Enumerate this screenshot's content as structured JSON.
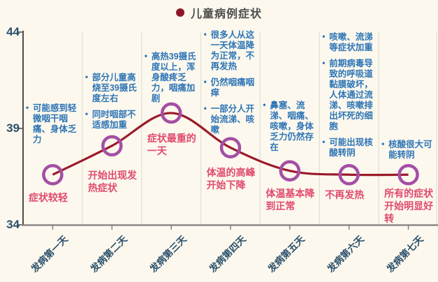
{
  "title": {
    "text": "儿童病例症状"
  },
  "colors": {
    "background": "#fcf8ee",
    "title_text": "#4d4d4d",
    "legend_dot": "#8e1626",
    "line": "#9a1b2b",
    "marker": "#a44fa4",
    "notes_text": "#2e75b5",
    "summary_text": "#e04a6e",
    "axis_label": "#2b506b",
    "y_axis_line": "#4d4d4d",
    "x_axis_line": "#7f7f7f",
    "gridline": "#dfe2d4"
  },
  "y_axis": {
    "tick_labels": [
      "44",
      "39",
      "34"
    ],
    "min": 34,
    "max": 44
  },
  "days": [
    {
      "x_label": "发病第一天",
      "value": 36.6,
      "notes": [
        "可能感到轻微咽干咽痛、身体乏力"
      ],
      "summary": "症状较轻"
    },
    {
      "x_label": "发病第二天",
      "value": 38.1,
      "notes": [
        "部分儿童高烧至39摄氏度左右",
        "同时咽部不适感加重"
      ],
      "summary": "开始出现发热症状"
    },
    {
      "x_label": "发病第三天",
      "value": 39.8,
      "notes": [
        "高热39摄氏度以上，浑身酸疼乏力，咽痛加剧"
      ],
      "summary": "症状最重的一天"
    },
    {
      "x_label": "发病第四天",
      "value": 38.0,
      "notes": [
        "很多人从这一天体温降为正常，不再发热",
        "仍然咽痛咽痒",
        "一部分人开始流涕、咳嗽"
      ],
      "summary": "体温的高峰开始下降"
    },
    {
      "x_label": "发病第五天",
      "value": 36.8,
      "notes": [
        "鼻塞、流涕、咽痛、咳嗽，身体乏力仍然存在"
      ],
      "summary": "体温基本降到正常"
    },
    {
      "x_label": "发病第六天",
      "value": 36.6,
      "notes": [
        "咳嗽、流涕等症状加重",
        "前期病毒导致的呼吸道黏膜破坏，人体通过流涕、咳嗽排出坏死的细胞",
        "可能出现核酸转阴"
      ],
      "summary": "不再发热"
    },
    {
      "x_label": "发病第七天",
      "value": 36.6,
      "notes": [
        "核酸很大可能转阴"
      ],
      "summary": "所有的症状开始明显好转"
    }
  ],
  "chart_data": {
    "type": "line",
    "title": "儿童病例症状",
    "x": [
      "发病第一天",
      "发病第二天",
      "发病第三天",
      "发病第四天",
      "发病第五天",
      "发病第六天",
      "发病第七天"
    ],
    "series": [
      {
        "name": "儿童病例症状",
        "values": [
          36.6,
          38.1,
          39.8,
          38.0,
          36.8,
          36.6,
          36.6
        ]
      }
    ],
    "ylim": [
      34,
      44
    ],
    "yticks": [
      34,
      39,
      44
    ],
    "grid": "vertical column separators only",
    "legend_position": "top-center",
    "line_color": "#9a1b2b",
    "marker": "open-circle",
    "marker_color": "#a44fa4",
    "annotations_above_points": "blue bulleted symptom notes per day",
    "annotations_below_points": "pink summary caption per day"
  }
}
